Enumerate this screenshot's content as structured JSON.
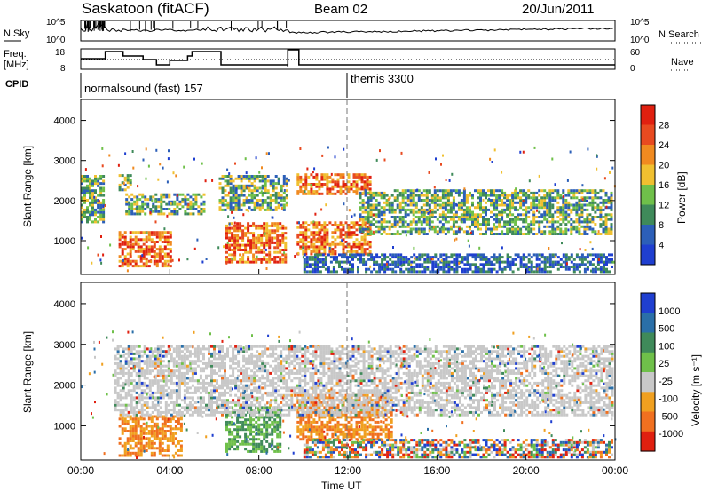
{
  "header": {
    "station": "Saskatoon (fitACF)",
    "beam": "Beam 02",
    "date": "20/Jun/2011"
  },
  "top_panel": {
    "left_label": "N.Sky",
    "left_ticks": [
      "10^5",
      "10^0"
    ],
    "right_ticks": [
      "10^5",
      "10^0"
    ],
    "right_label": "N.Search"
  },
  "freq_panel": {
    "left_label_1": "Freq.",
    "left_label_2": "[MHz]",
    "left_ticks": [
      "18",
      "8"
    ],
    "right_ticks": [
      "60",
      "0"
    ],
    "right_label": "Nave"
  },
  "cpid": {
    "label": "CPID",
    "segments": [
      {
        "text": "normalsound (fast) 157",
        "start_hour": 0
      },
      {
        "text": "themis 3300",
        "start_hour": 12
      }
    ]
  },
  "colors": {
    "power": [
      "#1f3fd0",
      "#2c5fb8",
      "#3f8a5a",
      "#6fc04a",
      "#f0c030",
      "#f08a20",
      "#e84a20",
      "#e02010"
    ],
    "velocity": [
      "#1f3fd0",
      "#2a6fa8",
      "#3f8a5a",
      "#6fc04a",
      "#c8c8c8",
      "#f0a020",
      "#f07020",
      "#e02010"
    ]
  },
  "chart_data": [
    {
      "type": "heatmap",
      "name": "power",
      "xlabel": "",
      "ylabel": "Slant Range [km]",
      "xlim": [
        0,
        24
      ],
      "ylim": [
        180,
        4500
      ],
      "yticks": [
        "1000",
        "2000",
        "3000",
        "4000"
      ],
      "colorbar": {
        "label": "Power [dB]",
        "ticks": [
          "4",
          "8",
          "12",
          "16",
          "20",
          "24",
          "28"
        ]
      },
      "regions": [
        {
          "t": [
            0.0,
            1.0
          ],
          "r": [
            1500,
            2700
          ],
          "level": "med"
        },
        {
          "t": [
            1.7,
            2.2
          ],
          "r": [
            2300,
            2700
          ],
          "level": "med"
        },
        {
          "t": [
            1.7,
            4.0
          ],
          "r": [
            400,
            1300
          ],
          "level": "high"
        },
        {
          "t": [
            2.0,
            5.5
          ],
          "r": [
            1700,
            2200
          ],
          "level": "med"
        },
        {
          "t": [
            6.2,
            9.2
          ],
          "r": [
            1800,
            2700
          ],
          "level": "med"
        },
        {
          "t": [
            6.5,
            9.2
          ],
          "r": [
            500,
            1500
          ],
          "level": "high"
        },
        {
          "t": [
            9.7,
            13.0
          ],
          "r": [
            2200,
            2700
          ],
          "level": "high"
        },
        {
          "t": [
            9.7,
            13.0
          ],
          "r": [
            700,
            1500
          ],
          "level": "high"
        },
        {
          "t": [
            12.5,
            24.0
          ],
          "r": [
            1200,
            2300
          ],
          "level": "med"
        },
        {
          "t": [
            10.0,
            24.0
          ],
          "r": [
            200,
            700
          ],
          "level": "low"
        }
      ]
    },
    {
      "type": "heatmap",
      "name": "velocity",
      "xlabel": "Time UT",
      "ylabel": "Slant Range [km]",
      "xlim": [
        0,
        24
      ],
      "ylim": [
        180,
        4500
      ],
      "xticks": [
        "00:00",
        "04:00",
        "08:00",
        "12:00",
        "16:00",
        "20:00",
        "00:00"
      ],
      "yticks": [
        "1000",
        "2000",
        "3000",
        "4000"
      ],
      "colorbar": {
        "label": "Velocity [m s⁻¹]",
        "ticks": [
          "1000",
          "500",
          "100",
          "25",
          "-25",
          "-100",
          "-500",
          "-1000"
        ]
      },
      "regions": [
        {
          "t": [
            1.7,
            4.5
          ],
          "r": [
            300,
            1300
          ],
          "level": "neg"
        },
        {
          "t": [
            6.5,
            9.0
          ],
          "r": [
            400,
            1500
          ],
          "level": "pos"
        },
        {
          "t": [
            9.7,
            14.0
          ],
          "r": [
            700,
            1800
          ],
          "level": "neg"
        },
        {
          "t": [
            1.5,
            24.0
          ],
          "r": [
            1300,
            3000
          ],
          "level": "zero"
        },
        {
          "t": [
            10.0,
            24.0
          ],
          "r": [
            200,
            700
          ],
          "level": "mix"
        }
      ]
    }
  ]
}
